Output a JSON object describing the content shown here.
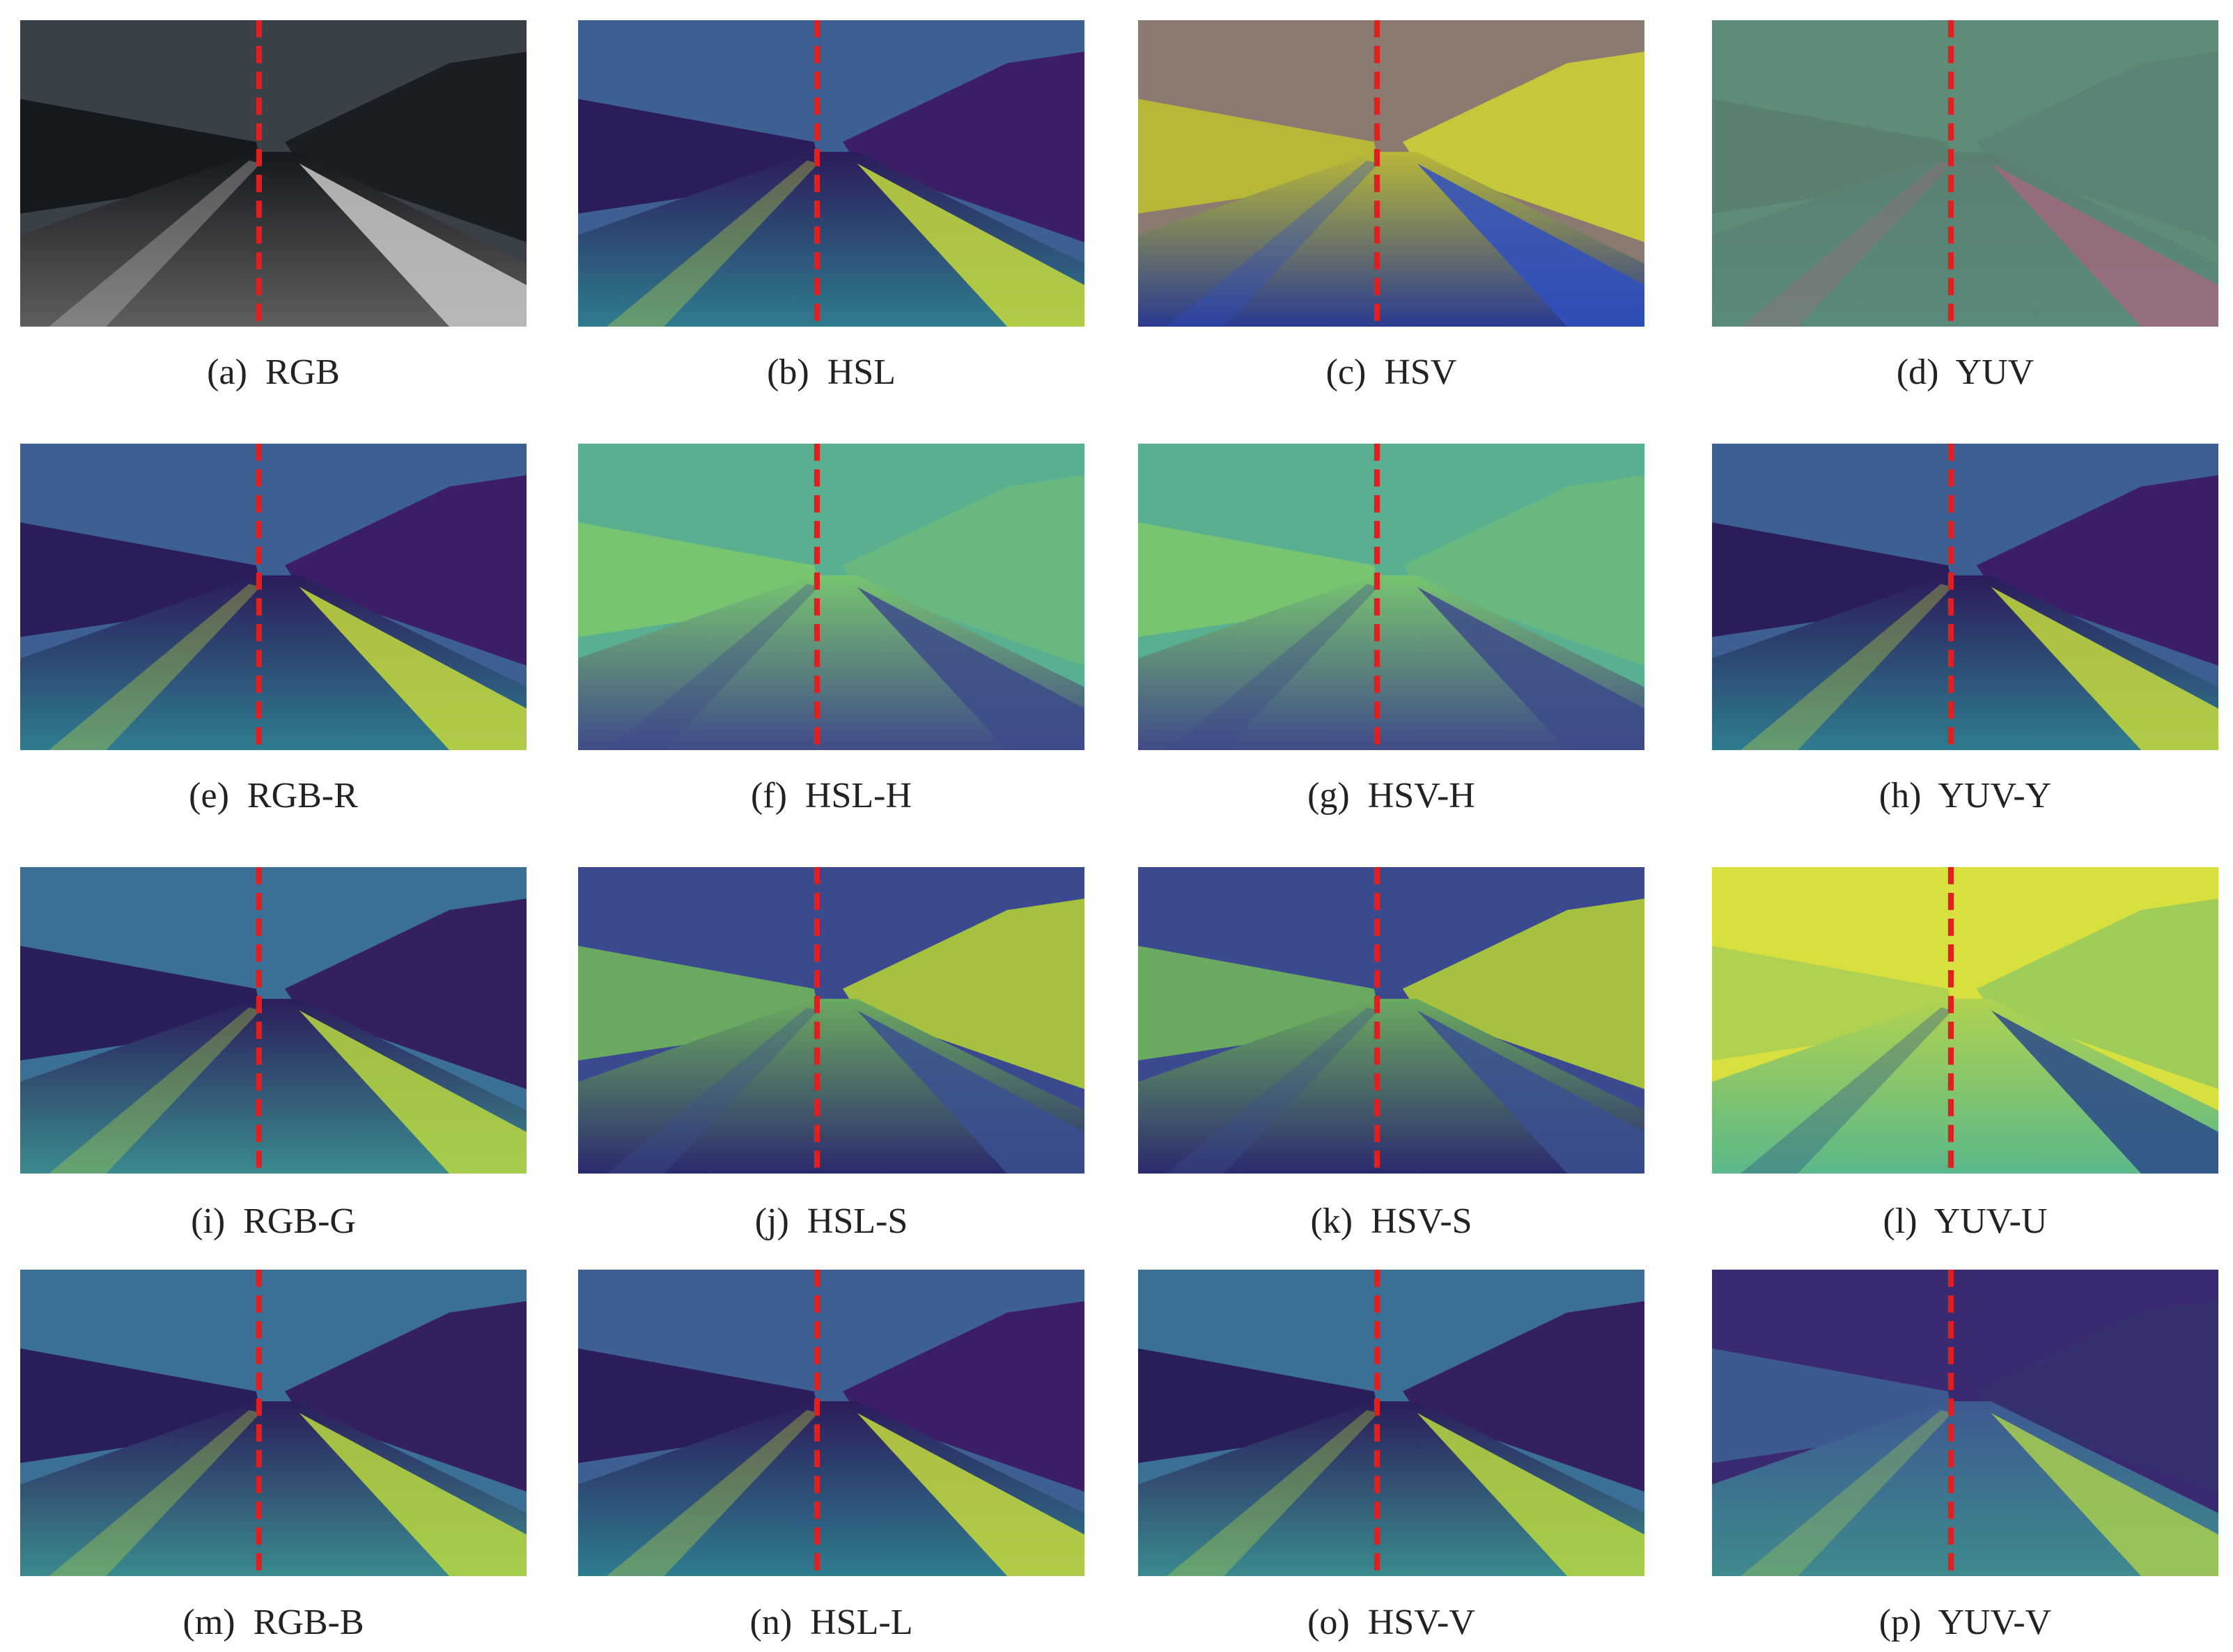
{
  "figure": {
    "panels": [
      {
        "caption": "(a)  RGB"
      },
      {
        "caption": "(b)  HSL"
      },
      {
        "caption": "(c)  HSV"
      },
      {
        "caption": "(d)  YUV"
      },
      {
        "caption": "(e)  RGB-R"
      },
      {
        "caption": "(f)  HSL-H"
      },
      {
        "caption": "(g)  HSV-H"
      },
      {
        "caption": "(h)  YUV-Y"
      },
      {
        "caption": "(i)  RGB-G"
      },
      {
        "caption": "(j)  HSL-S"
      },
      {
        "caption": "(k)  HSV-S"
      },
      {
        "caption": "(l)  YUV-U"
      },
      {
        "caption": "(m)  RGB-B"
      },
      {
        "caption": "(n)  HSL-L"
      },
      {
        "caption": "(o)  HSV-V"
      },
      {
        "caption": "(p)  YUV-V"
      }
    ]
  }
}
